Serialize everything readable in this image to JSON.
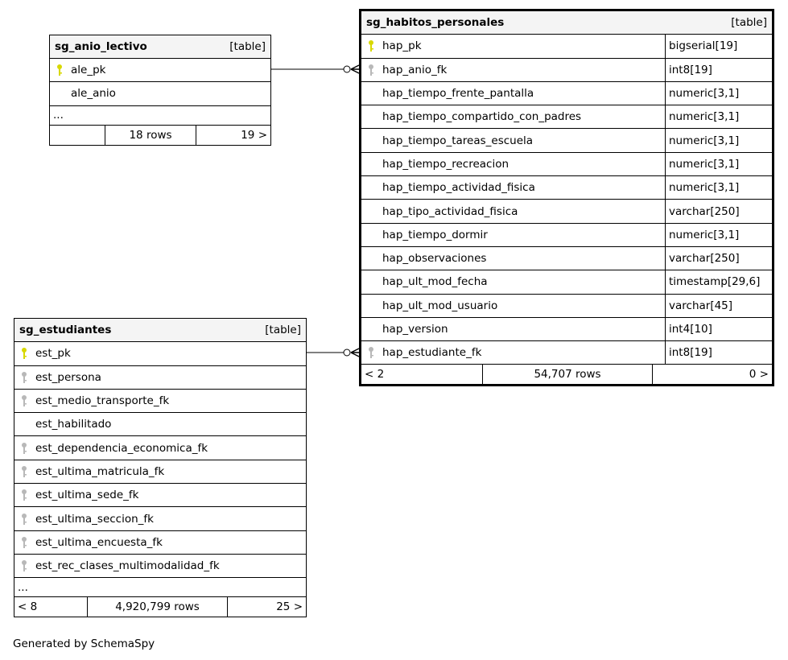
{
  "tables": [
    {
      "name": "sg_anio_lectivo",
      "type": "[table]",
      "columns": [
        {
          "name": "ale_pk",
          "key": "primary"
        },
        {
          "name": "ale_anio",
          "key": "none"
        }
      ],
      "more": "...",
      "footer": {
        "left": "",
        "rows": "18 rows",
        "right": "19 >"
      }
    },
    {
      "name": "sg_habitos_personales",
      "type": "[table]",
      "columns": [
        {
          "name": "hap_pk",
          "key": "primary",
          "dtype": "bigserial[19]"
        },
        {
          "name": "hap_anio_fk",
          "key": "foreign",
          "dtype": "int8[19]"
        },
        {
          "name": "hap_tiempo_frente_pantalla",
          "key": "none",
          "dtype": "numeric[3,1]"
        },
        {
          "name": "hap_tiempo_compartido_con_padres",
          "key": "none",
          "dtype": "numeric[3,1]"
        },
        {
          "name": "hap_tiempo_tareas_escuela",
          "key": "none",
          "dtype": "numeric[3,1]"
        },
        {
          "name": "hap_tiempo_recreacion",
          "key": "none",
          "dtype": "numeric[3,1]"
        },
        {
          "name": "hap_tiempo_actividad_fisica",
          "key": "none",
          "dtype": "numeric[3,1]"
        },
        {
          "name": "hap_tipo_actividad_fisica",
          "key": "none",
          "dtype": "varchar[250]"
        },
        {
          "name": "hap_tiempo_dormir",
          "key": "none",
          "dtype": "numeric[3,1]"
        },
        {
          "name": "hap_observaciones",
          "key": "none",
          "dtype": "varchar[250]"
        },
        {
          "name": "hap_ult_mod_fecha",
          "key": "none",
          "dtype": "timestamp[29,6]"
        },
        {
          "name": "hap_ult_mod_usuario",
          "key": "none",
          "dtype": "varchar[45]"
        },
        {
          "name": "hap_version",
          "key": "none",
          "dtype": "int4[10]"
        },
        {
          "name": "hap_estudiante_fk",
          "key": "foreign",
          "dtype": "int8[19]"
        }
      ],
      "footer": {
        "left": "< 2",
        "rows": "54,707 rows",
        "right": "0 >"
      }
    },
    {
      "name": "sg_estudiantes",
      "type": "[table]",
      "columns": [
        {
          "name": "est_pk",
          "key": "primary"
        },
        {
          "name": "est_persona",
          "key": "foreign"
        },
        {
          "name": "est_medio_transporte_fk",
          "key": "foreign"
        },
        {
          "name": "est_habilitado",
          "key": "none"
        },
        {
          "name": "est_dependencia_economica_fk",
          "key": "foreign"
        },
        {
          "name": "est_ultima_matricula_fk",
          "key": "foreign"
        },
        {
          "name": "est_ultima_sede_fk",
          "key": "foreign"
        },
        {
          "name": "est_ultima_seccion_fk",
          "key": "foreign"
        },
        {
          "name": "est_ultima_encuesta_fk",
          "key": "foreign"
        },
        {
          "name": "est_rec_clases_multimodalidad_fk",
          "key": "foreign"
        }
      ],
      "more": "...",
      "footer": {
        "left": "< 8",
        "rows": "4,920,799 rows",
        "right": "25 >"
      }
    }
  ],
  "relationships": [
    {
      "from": "sg_anio_lectivo.ale_pk",
      "to": "sg_habitos_personales.hap_anio_fk",
      "cardinality": "one-to-zero-or-many"
    },
    {
      "from": "sg_estudiantes.est_pk",
      "to": "sg_habitos_personales.hap_estudiante_fk",
      "cardinality": "one-to-zero-or-many"
    }
  ],
  "colors": {
    "primary_key": "#d8d800",
    "foreign_key": "#b8b8b8",
    "header_bg": "#f4f4f4"
  },
  "footer_note": "Generated by SchemaSpy"
}
